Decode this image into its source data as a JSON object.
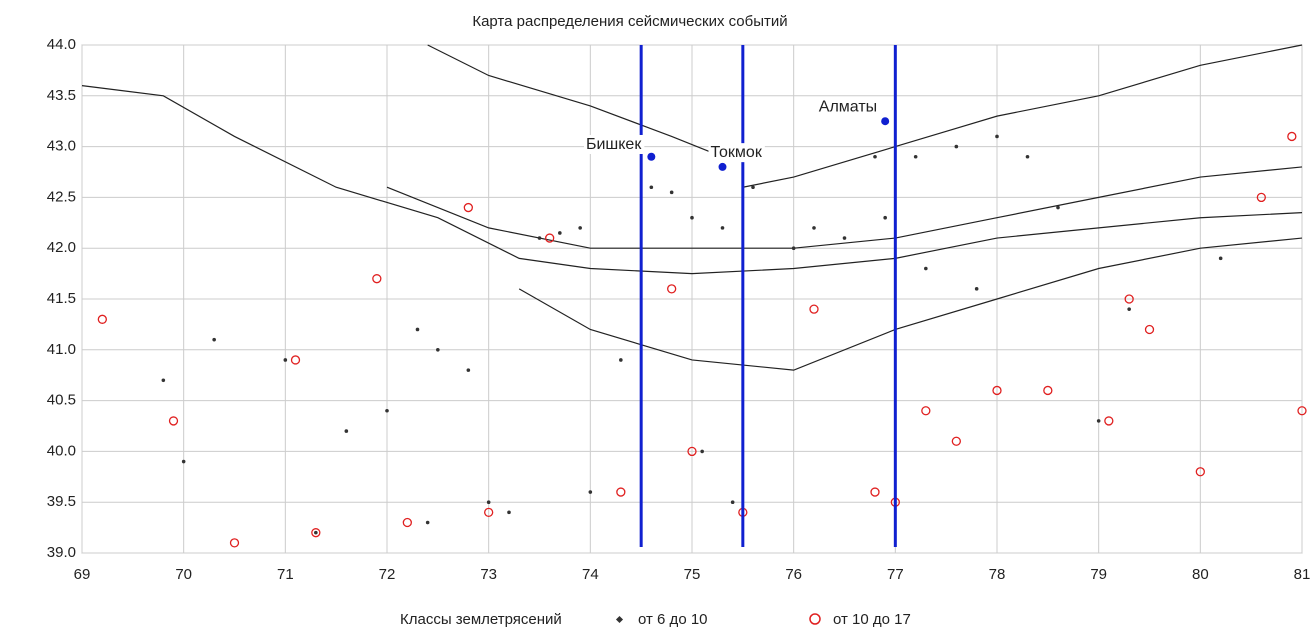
{
  "chart_data": {
    "type": "scatter",
    "title": "Карта распределения сейсмических событий",
    "xlim": [
      69,
      81
    ],
    "ylim": [
      39,
      44
    ],
    "xticks": [
      69,
      70,
      71,
      72,
      73,
      74,
      75,
      76,
      77,
      78,
      79,
      80,
      81
    ],
    "yticks": [
      {
        "value": 39,
        "label": "39.0"
      },
      39.5,
      {
        "value": 40,
        "label": "40.0"
      },
      40.5,
      {
        "value": 41,
        "label": "41.0"
      },
      41.5,
      {
        "value": 42,
        "label": "42.0"
      },
      42.5,
      {
        "value": 43,
        "label": "43.0"
      },
      43.5,
      {
        "value": 44,
        "label": "44.0"
      }
    ],
    "grid": true,
    "legend_title": "Классы землетрясений",
    "series": [
      {
        "name": "от 6 до 10",
        "color": "#333333",
        "x": [
          73.5,
          73.7,
          73.9,
          74.6,
          74.8,
          75.0,
          75.3,
          75.6,
          76.2,
          76.5,
          76.8,
          77.2,
          77.6,
          78.0,
          78.3,
          78.6,
          72.3,
          72.5,
          72.0,
          71.3,
          70.0,
          69.8,
          70.3,
          71.0,
          71.6,
          72.8,
          73.2,
          74.0,
          74.3,
          75.1,
          75.4,
          76.0,
          76.9,
          77.3,
          77.8,
          79.3,
          79.0,
          80.2,
          72.4,
          73.0
        ],
        "y": [
          42.1,
          42.15,
          42.2,
          42.6,
          42.55,
          42.3,
          42.2,
          42.6,
          42.2,
          42.1,
          42.9,
          42.9,
          43.0,
          43.1,
          42.9,
          42.4,
          41.2,
          41.0,
          40.4,
          39.2,
          39.9,
          40.7,
          41.1,
          40.9,
          40.2,
          40.8,
          39.4,
          39.6,
          40.9,
          40.0,
          39.5,
          42.0,
          42.3,
          41.8,
          41.6,
          41.4,
          40.3,
          41.9,
          39.3,
          39.5
        ]
      },
      {
        "name": "от 10 до 17",
        "color": "#e02020",
        "x": [
          69.2,
          71.1,
          71.3,
          72.2,
          73.0,
          73.6,
          74.3,
          75.0,
          75.5,
          76.8,
          77.0,
          77.3,
          77.6,
          78.0,
          79.3,
          79.5,
          80.0,
          80.6,
          80.9,
          70.5,
          71.9,
          72.8,
          74.8,
          76.2,
          78.5,
          79.1,
          81.0,
          69.9
        ],
        "y": [
          41.3,
          40.9,
          39.2,
          39.3,
          39.4,
          42.1,
          39.6,
          40.0,
          39.4,
          39.6,
          39.5,
          40.4,
          40.1,
          40.6,
          41.5,
          41.2,
          39.8,
          42.5,
          43.1,
          39.1,
          41.7,
          42.4,
          41.6,
          41.4,
          40.6,
          40.3,
          40.4,
          40.3
        ]
      }
    ],
    "faults_color": "#222222",
    "faults": [
      {
        "x": [
          69,
          69.8,
          70.5,
          71.5,
          72.5,
          73.3,
          74,
          75,
          76,
          77,
          78,
          79,
          80,
          81
        ],
        "y": [
          43.6,
          43.5,
          43.1,
          42.6,
          42.3,
          41.9,
          41.8,
          41.75,
          41.8,
          41.9,
          42.1,
          42.2,
          42.3,
          42.35
        ]
      },
      {
        "x": [
          73.3,
          74,
          75,
          76,
          77,
          78,
          79,
          80,
          81
        ],
        "y": [
          41.6,
          41.2,
          40.9,
          40.8,
          41.2,
          41.5,
          41.8,
          42.0,
          42.1
        ]
      },
      {
        "x": [
          72,
          73,
          74,
          75,
          76,
          77,
          78,
          79,
          80,
          81
        ],
        "y": [
          42.6,
          42.2,
          42.0,
          42.0,
          42.0,
          42.1,
          42.3,
          42.5,
          42.7,
          42.8
        ]
      },
      {
        "x": [
          75.5,
          76,
          77,
          78,
          79,
          80,
          81
        ],
        "y": [
          42.6,
          42.7,
          43.0,
          43.3,
          43.5,
          43.8,
          44.0
        ]
      },
      {
        "x": [
          72.4,
          73,
          74,
          74.8,
          75.3
        ],
        "y": [
          44,
          43.7,
          43.4,
          43.1,
          42.9
        ]
      }
    ],
    "vlines_color": "#1020d0",
    "vlines": [
      74.5,
      75.5,
      77
    ],
    "cities": [
      {
        "label": "Бишкек",
        "x": 74.6,
        "y": 42.9
      },
      {
        "label": "Токмок",
        "x": 75.3,
        "y": 42.8
      },
      {
        "label": "Алматы",
        "x": 76.9,
        "y": 43.25
      }
    ]
  }
}
